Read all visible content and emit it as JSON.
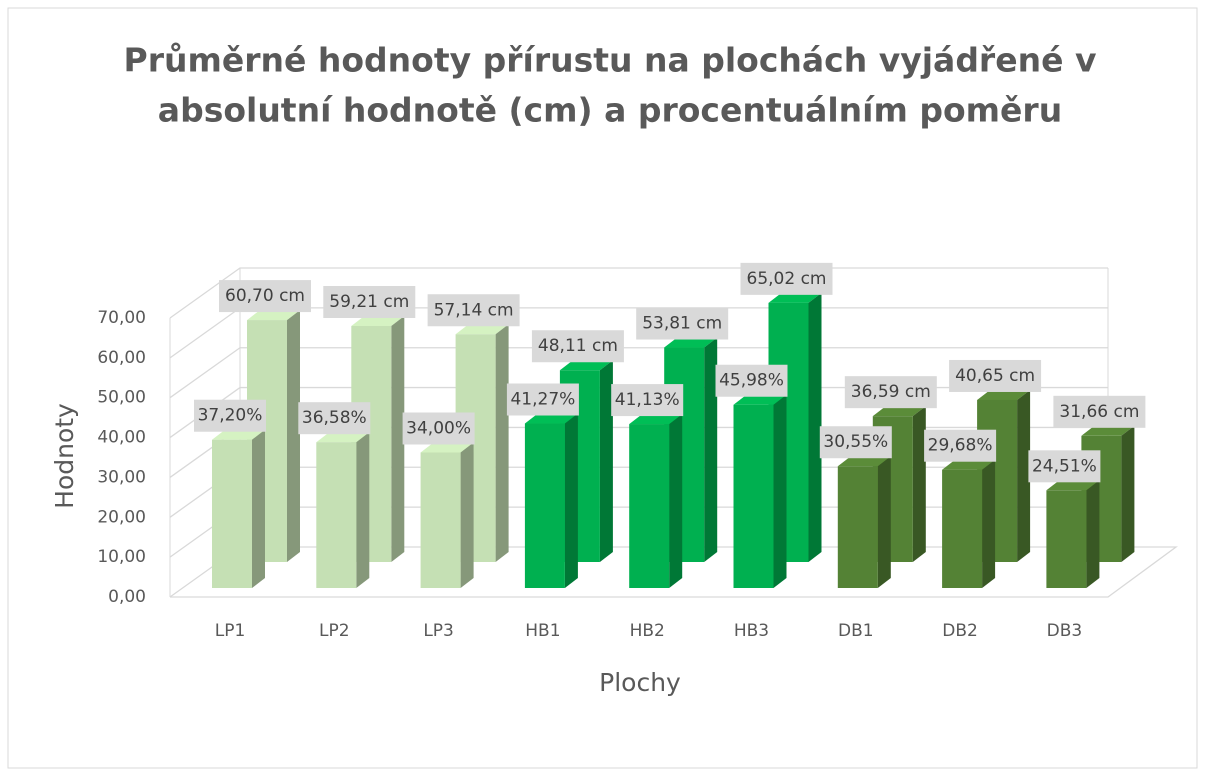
{
  "chart_data": {
    "type": "bar3d",
    "title": "Průměrné hodnoty přírustu na plochách vyjádřené v",
    "subtitle": "absolutní hodnotě (cm) a procentuálním poměru",
    "x_label": "Plochy",
    "y_label": "Hodnoty",
    "categories": [
      "LP1",
      "LP2",
      "LP3",
      "HB1",
      "HB2",
      "HB3",
      "DB1",
      "DB2",
      "DB3"
    ],
    "series": [
      {
        "values": [
          37.2,
          36.58,
          34.0,
          41.27,
          41.13,
          45.98,
          30.55,
          29.68,
          24.51
        ],
        "value_labels": [
          "37,20%",
          "36,58%",
          "34,00%",
          "41,27%",
          "41,13%",
          "45,98%",
          "30,55%",
          "29,68%",
          "24,51%"
        ],
        "colors": [
          "#c5e0b4",
          "#c5e0b4",
          "#c5e0b4",
          "#00b050",
          "#00b050",
          "#00b050",
          "#548235",
          "#548235",
          "#548235"
        ]
      },
      {
        "values": [
          60.7,
          59.21,
          57.14,
          48.11,
          53.81,
          65.02,
          36.59,
          40.65,
          31.66
        ],
        "value_labels": [
          "60,70 cm",
          "59,21 cm",
          "57,14 cm",
          "48,11 cm",
          "53,81 cm",
          "65,02 cm",
          "36,59 cm",
          "40,65 cm",
          "31,66 cm"
        ],
        "colors": [
          "#c5e0b4",
          "#c5e0b4",
          "#c5e0b4",
          "#00b050",
          "#00b050",
          "#00b050",
          "#548235",
          "#548235",
          "#548235"
        ]
      }
    ],
    "ylim": [
      0,
      70
    ],
    "yticks": [
      {
        "value": 0,
        "label": "0,00"
      },
      {
        "value": 10,
        "label": "10,00"
      },
      {
        "value": 20,
        "label": "20,00"
      },
      {
        "value": 30,
        "label": "30,00"
      },
      {
        "value": 40,
        "label": "40,00"
      },
      {
        "value": 50,
        "label": "50,00"
      },
      {
        "value": 60,
        "label": "60,00"
      },
      {
        "value": 70,
        "label": "70,00"
      }
    ],
    "grid": true
  }
}
